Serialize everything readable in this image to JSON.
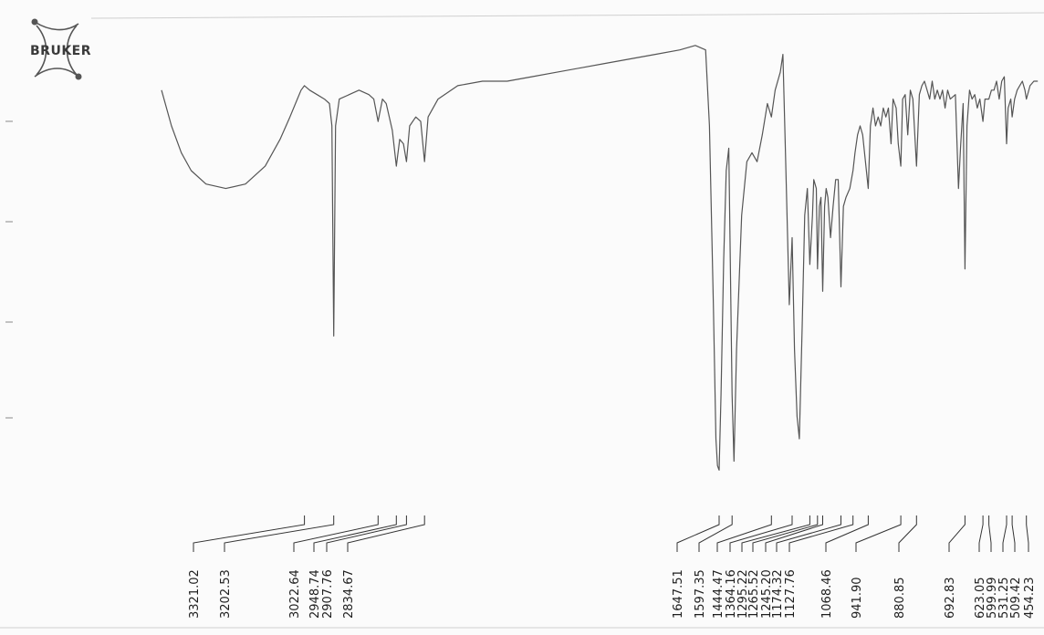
{
  "logo": {
    "text": "BRUKER"
  },
  "colors": {
    "background": "#fbfbfb",
    "trace": "#555555",
    "label": "#1e1e1e",
    "leader": "#333333"
  },
  "chart_data": {
    "type": "line",
    "title": "",
    "xlabel": "",
    "ylabel": "",
    "x_unit": "wavenumber (cm-1)",
    "xlim": [
      4000,
      400
    ],
    "x_reversed": true,
    "ylim": [
      0,
      100
    ],
    "grid": false,
    "legend": "none",
    "series": [
      {
        "values": [
          [
            3900,
            88
          ],
          [
            3860,
            80
          ],
          [
            3820,
            74
          ],
          [
            3780,
            70
          ],
          [
            3720,
            67
          ],
          [
            3640,
            66
          ],
          [
            3560,
            67
          ],
          [
            3480,
            71
          ],
          [
            3420,
            77
          ],
          [
            3380,
            82
          ],
          [
            3350,
            86
          ],
          [
            3335,
            88
          ],
          [
            3321,
            89
          ],
          [
            3300,
            88
          ],
          [
            3270,
            87
          ],
          [
            3240,
            86
          ],
          [
            3220,
            85
          ],
          [
            3210,
            80
          ],
          [
            3202.53,
            33
          ],
          [
            3195,
            80
          ],
          [
            3180,
            86
          ],
          [
            3140,
            87
          ],
          [
            3100,
            88
          ],
          [
            3060,
            87
          ],
          [
            3040,
            86
          ],
          [
            3022.64,
            81
          ],
          [
            3005,
            86
          ],
          [
            2990,
            85
          ],
          [
            2965,
            79
          ],
          [
            2948.74,
            71
          ],
          [
            2935,
            77
          ],
          [
            2920,
            76
          ],
          [
            2907.76,
            72
          ],
          [
            2895,
            80
          ],
          [
            2870,
            82
          ],
          [
            2850,
            81
          ],
          [
            2834.67,
            72
          ],
          [
            2820,
            82
          ],
          [
            2780,
            86
          ],
          [
            2700,
            89
          ],
          [
            2600,
            90
          ],
          [
            2500,
            90
          ],
          [
            2400,
            91
          ],
          [
            2300,
            92
          ],
          [
            2200,
            93
          ],
          [
            2100,
            94
          ],
          [
            2000,
            95
          ],
          [
            1900,
            96
          ],
          [
            1800,
            97
          ],
          [
            1740,
            98
          ],
          [
            1700,
            97
          ],
          [
            1685,
            80
          ],
          [
            1670,
            40
          ],
          [
            1660,
            10
          ],
          [
            1654,
            4
          ],
          [
            1647.51,
            3
          ],
          [
            1640,
            20
          ],
          [
            1630,
            50
          ],
          [
            1620,
            70
          ],
          [
            1610,
            75
          ],
          [
            1597.35,
            20
          ],
          [
            1590,
            5
          ],
          [
            1580,
            30
          ],
          [
            1560,
            60
          ],
          [
            1540,
            72
          ],
          [
            1520,
            74
          ],
          [
            1500,
            72
          ],
          [
            1480,
            78
          ],
          [
            1460,
            85
          ],
          [
            1444.47,
            82
          ],
          [
            1430,
            88
          ],
          [
            1410,
            92
          ],
          [
            1400,
            96
          ],
          [
            1390,
            74
          ],
          [
            1375,
            40
          ],
          [
            1364.16,
            55
          ],
          [
            1355,
            30
          ],
          [
            1345,
            15
          ],
          [
            1336,
            10
          ],
          [
            1325,
            35
          ],
          [
            1315,
            60
          ],
          [
            1305,
            66
          ],
          [
            1295.22,
            49
          ],
          [
            1285,
            60
          ],
          [
            1280,
            68
          ],
          [
            1270,
            66
          ],
          [
            1265.52,
            48
          ],
          [
            1258,
            62
          ],
          [
            1252,
            64
          ],
          [
            1245.2,
            43
          ],
          [
            1238,
            62
          ],
          [
            1232,
            66
          ],
          [
            1225,
            64
          ],
          [
            1215,
            55
          ],
          [
            1205,
            62
          ],
          [
            1195,
            68
          ],
          [
            1185,
            68
          ],
          [
            1174.32,
            44
          ],
          [
            1165,
            62
          ],
          [
            1160,
            63
          ],
          [
            1155,
            64
          ],
          [
            1140,
            66
          ],
          [
            1127.76,
            70
          ],
          [
            1120,
            74
          ],
          [
            1110,
            78
          ],
          [
            1100,
            80
          ],
          [
            1090,
            78
          ],
          [
            1068.46,
            66
          ],
          [
            1060,
            80
          ],
          [
            1050,
            84
          ],
          [
            1040,
            80
          ],
          [
            1030,
            82
          ],
          [
            1020,
            80
          ],
          [
            1010,
            84
          ],
          [
            1000,
            82
          ],
          [
            990,
            84
          ],
          [
            980,
            76
          ],
          [
            972,
            86
          ],
          [
            960,
            84
          ],
          [
            952,
            76
          ],
          [
            941.9,
            71
          ],
          [
            935,
            86
          ],
          [
            925,
            87
          ],
          [
            915,
            78
          ],
          [
            905,
            88
          ],
          [
            895,
            86
          ],
          [
            880.85,
            71
          ],
          [
            870,
            87
          ],
          [
            860,
            89
          ],
          [
            850,
            90
          ],
          [
            840,
            88
          ],
          [
            830,
            86
          ],
          [
            820,
            90
          ],
          [
            810,
            86
          ],
          [
            800,
            88
          ],
          [
            790,
            86
          ],
          [
            780,
            88
          ],
          [
            770,
            84
          ],
          [
            760,
            88
          ],
          [
            750,
            86
          ],
          [
            730,
            87
          ],
          [
            718,
            66
          ],
          [
            710,
            75
          ],
          [
            700,
            85
          ],
          [
            692.83,
            48
          ],
          [
            685,
            80
          ],
          [
            675,
            88
          ],
          [
            665,
            86
          ],
          [
            655,
            87
          ],
          [
            645,
            84
          ],
          [
            635,
            86
          ],
          [
            623.05,
            81
          ],
          [
            615,
            86
          ],
          [
            599.99,
            86
          ],
          [
            590,
            88
          ],
          [
            580,
            88
          ],
          [
            570,
            90
          ],
          [
            560,
            86
          ],
          [
            550,
            90
          ],
          [
            540,
            91
          ],
          [
            531.25,
            76
          ],
          [
            525,
            84
          ],
          [
            515,
            86
          ],
          [
            509.42,
            82
          ],
          [
            500,
            86
          ],
          [
            490,
            88
          ],
          [
            480,
            89
          ],
          [
            470,
            90
          ],
          [
            460,
            88
          ],
          [
            454.23,
            86
          ],
          [
            440,
            89
          ],
          [
            425,
            90
          ],
          [
            410,
            90
          ]
        ]
      }
    ],
    "peak_labels": [
      "3321.02",
      "3202.53",
      "3022.64",
      "2948.74",
      "2907.76",
      "2834.67",
      "1647.51",
      "1597.35",
      "1444.47",
      "1364.16",
      "1295.22",
      "1265.52",
      "1245.20",
      "1174.32",
      "1127.76",
      "1068.46",
      "941.90",
      "880.85",
      "692.83",
      "623.05",
      "599.99",
      "531.25",
      "509.42",
      "454.23"
    ],
    "peak_positions": [
      3321.02,
      3202.53,
      3022.64,
      2948.74,
      2907.76,
      2834.67,
      1647.51,
      1597.35,
      1444.47,
      1364.16,
      1295.22,
      1265.52,
      1245.2,
      1174.32,
      1127.76,
      1068.46,
      941.9,
      880.85,
      692.83,
      623.05,
      599.99,
      531.25,
      509.42,
      454.23
    ]
  }
}
